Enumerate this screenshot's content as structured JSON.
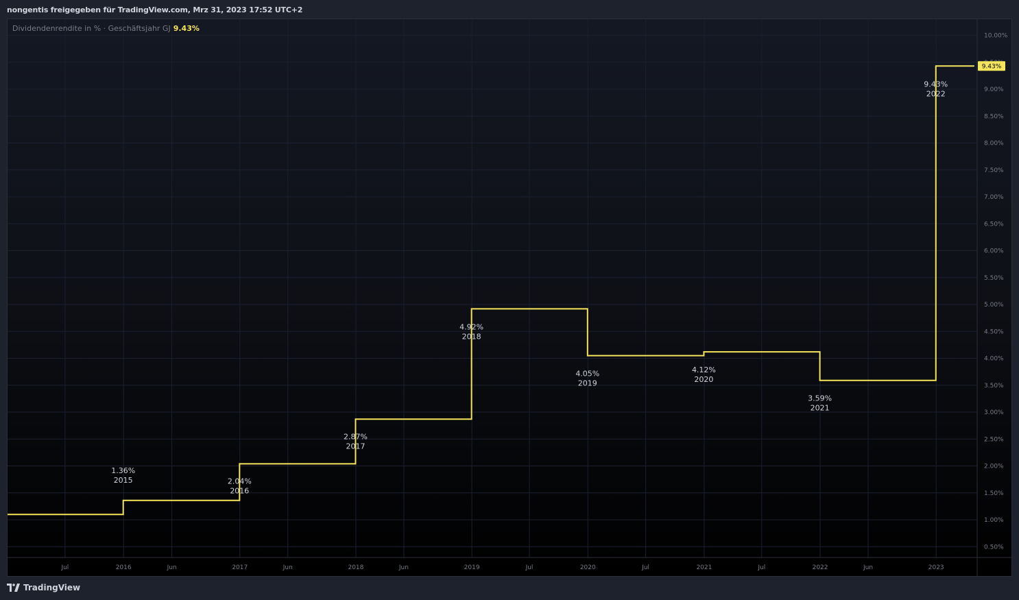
{
  "header": {
    "title": "nongentis freigegeben für TradingView.com, Mrz 31, 2023 17:52 UTC+2"
  },
  "legend": {
    "label": "Dividendenrendite in % · Geschäftsjahr GJ",
    "value": "9.43%"
  },
  "footer": {
    "brand": "TradingView",
    "logo_icon": "tradingview-logo-icon"
  },
  "colors": {
    "line": "#f5e55c",
    "grid": "#1c2030",
    "axis_text": "#787b86",
    "label_text": "#d1d4dc",
    "badge_bg": "#f5e55c"
  },
  "chart_data": {
    "type": "line",
    "step": true,
    "ylim": [
      0.3,
      10.3
    ],
    "yticks": [
      "10.00%",
      "9.50%",
      "9.00%",
      "8.50%",
      "8.00%",
      "7.50%",
      "7.00%",
      "6.50%",
      "6.00%",
      "5.50%",
      "5.00%",
      "4.50%",
      "4.00%",
      "3.50%",
      "3.00%",
      "2.50%",
      "2.00%",
      "1.50%",
      "1.00%",
      "0.50%"
    ],
    "ytick_values": [
      10.0,
      9.5,
      9.0,
      8.5,
      8.0,
      7.5,
      7.0,
      6.5,
      6.0,
      5.5,
      5.0,
      4.5,
      4.0,
      3.5,
      3.0,
      2.5,
      2.0,
      1.5,
      1.0,
      0.5
    ],
    "xlim": [
      "2015-01-01",
      "2023-05-10"
    ],
    "xticks": [
      {
        "label": "Jul",
        "date": "2015-07-01"
      },
      {
        "label": "2016",
        "date": "2016-01-01"
      },
      {
        "label": "Jun",
        "date": "2016-06-01"
      },
      {
        "label": "2017",
        "date": "2017-01-01"
      },
      {
        "label": "Jun",
        "date": "2017-06-01"
      },
      {
        "label": "2018",
        "date": "2018-01-01"
      },
      {
        "label": "Jun",
        "date": "2018-06-01"
      },
      {
        "label": "2019",
        "date": "2019-01-01"
      },
      {
        "label": "Jul",
        "date": "2019-07-01"
      },
      {
        "label": "2020",
        "date": "2020-01-01"
      },
      {
        "label": "Jul",
        "date": "2020-07-01"
      },
      {
        "label": "2021",
        "date": "2021-01-01"
      },
      {
        "label": "Jul",
        "date": "2021-07-01"
      },
      {
        "label": "2022",
        "date": "2022-01-01"
      },
      {
        "label": "Jun",
        "date": "2022-06-01"
      },
      {
        "label": "2023",
        "date": "2023-01-01"
      }
    ],
    "points": [
      {
        "date": "2015-01-01",
        "value": 1.1
      },
      {
        "date": "2015-12-31",
        "value": 1.36,
        "label": "1.36%",
        "year": "2015"
      },
      {
        "date": "2016-12-31",
        "value": 2.04,
        "label": "2.04%",
        "year": "2016"
      },
      {
        "date": "2017-12-31",
        "value": 2.87,
        "label": "2.87%",
        "year": "2017"
      },
      {
        "date": "2018-12-31",
        "value": 4.92,
        "label": "4.92%",
        "year": "2018"
      },
      {
        "date": "2019-12-31",
        "value": 4.05,
        "label": "4.05%",
        "year": "2019"
      },
      {
        "date": "2020-12-31",
        "value": 4.12,
        "label": "4.12%",
        "year": "2020"
      },
      {
        "date": "2021-12-31",
        "value": 3.59,
        "label": "3.59%",
        "year": "2021"
      },
      {
        "date": "2022-12-31",
        "value": 9.43,
        "label": "9.43%",
        "year": "2022"
      }
    ],
    "line_end": "2023-05-01",
    "last_value_badge": "9.43%"
  }
}
